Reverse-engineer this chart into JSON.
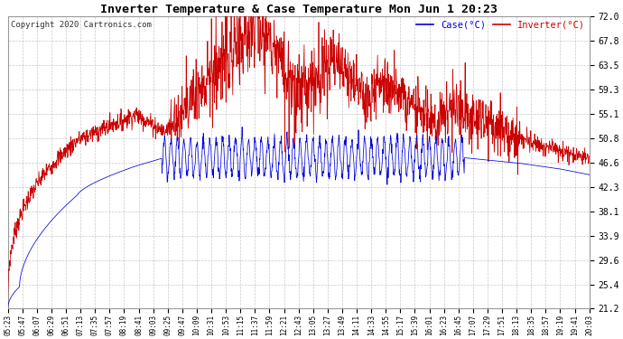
{
  "title": "Inverter Temperature & Case Temperature Mon Jun 1 20:23",
  "copyright": "Copyright 2020 Cartronics.com",
  "legend_case": "Case(°C)",
  "legend_inverter": "Inverter(°C)",
  "yticks": [
    21.2,
    25.4,
    29.6,
    33.9,
    38.1,
    42.3,
    46.6,
    50.8,
    55.1,
    59.3,
    63.5,
    67.8,
    72.0
  ],
  "ylim": [
    21.2,
    72.0
  ],
  "xlim": [
    0,
    1
  ],
  "background_color": "#ffffff",
  "plot_bg_color": "#ffffff",
  "grid_color": "#bbbbbb",
  "title_color": "#000000",
  "case_color": "#0000dd",
  "inverter_color": "#cc0000",
  "n_points": 1800,
  "xtick_labels": [
    "05:23",
    "05:47",
    "06:07",
    "06:29",
    "06:51",
    "07:13",
    "07:35",
    "07:57",
    "08:19",
    "08:41",
    "09:03",
    "09:25",
    "09:47",
    "10:09",
    "10:31",
    "10:53",
    "11:15",
    "11:37",
    "11:59",
    "12:21",
    "12:43",
    "13:05",
    "13:27",
    "13:49",
    "14:11",
    "14:33",
    "14:55",
    "15:17",
    "15:39",
    "16:01",
    "16:23",
    "16:45",
    "17:07",
    "17:29",
    "17:51",
    "18:13",
    "18:35",
    "18:57",
    "19:19",
    "19:41",
    "20:03"
  ]
}
